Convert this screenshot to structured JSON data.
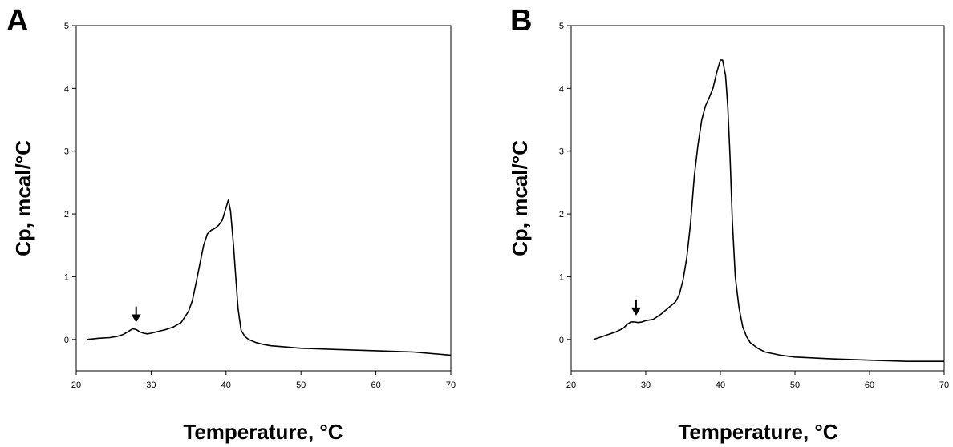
{
  "chart_data": [
    {
      "type": "line",
      "panel_label": "A",
      "xlabel": "Temperature, °C",
      "ylabel": "Cp, mcal/°C",
      "xlim": [
        20,
        70
      ],
      "ylim": [
        -0.5,
        5
      ],
      "xticks": [
        20,
        30,
        40,
        50,
        60,
        70
      ],
      "yticks": [
        0,
        1,
        2,
        3,
        4,
        5
      ],
      "grid": false,
      "annotation": {
        "type": "arrow-down",
        "x": 28.0,
        "y": 0.17
      },
      "series": [
        {
          "x": [
            21.5,
            23,
            24.5,
            25.5,
            26.3,
            27,
            27.5,
            28,
            28.5,
            29,
            29.5,
            30,
            31,
            32,
            33,
            34,
            35,
            35.5,
            36,
            36.5,
            37,
            37.5,
            38,
            38.5,
            39,
            39.5,
            40,
            40.3,
            40.6,
            41,
            41.3,
            41.6,
            42,
            42.5,
            43,
            44,
            45,
            46,
            48,
            50,
            55,
            60,
            65,
            70
          ],
          "y": [
            0.0,
            0.02,
            0.03,
            0.05,
            0.08,
            0.13,
            0.17,
            0.16,
            0.12,
            0.1,
            0.09,
            0.1,
            0.13,
            0.16,
            0.2,
            0.27,
            0.45,
            0.62,
            0.9,
            1.2,
            1.5,
            1.68,
            1.74,
            1.77,
            1.82,
            1.9,
            2.1,
            2.22,
            2.05,
            1.5,
            1.0,
            0.5,
            0.15,
            0.05,
            0.0,
            -0.05,
            -0.08,
            -0.1,
            -0.12,
            -0.14,
            -0.16,
            -0.18,
            -0.2,
            -0.25
          ]
        }
      ]
    },
    {
      "type": "line",
      "panel_label": "B",
      "xlabel": "Temperature, °C",
      "ylabel": "Cp, mcal/°C",
      "xlim": [
        20,
        70
      ],
      "ylim": [
        -0.5,
        5
      ],
      "xticks": [
        20,
        30,
        40,
        50,
        60,
        70
      ],
      "yticks": [
        0,
        1,
        2,
        3,
        4,
        5
      ],
      "grid": false,
      "annotation": {
        "type": "arrow-down",
        "x": 28.7,
        "y": 0.28
      },
      "series": [
        {
          "x": [
            23,
            24,
            25,
            26,
            27,
            27.5,
            28,
            28.5,
            29,
            29.5,
            30,
            31,
            32,
            33,
            34,
            34.5,
            35,
            35.5,
            36,
            36.5,
            37,
            37.5,
            38,
            38.5,
            39,
            39.5,
            40,
            40.3,
            40.7,
            41,
            41.3,
            41.6,
            42,
            42.5,
            43,
            43.5,
            44,
            45,
            46,
            48,
            50,
            55,
            60,
            65,
            70
          ],
          "y": [
            0.0,
            0.04,
            0.08,
            0.12,
            0.18,
            0.24,
            0.28,
            0.28,
            0.27,
            0.28,
            0.3,
            0.32,
            0.4,
            0.5,
            0.6,
            0.72,
            0.95,
            1.3,
            1.85,
            2.6,
            3.1,
            3.5,
            3.72,
            3.85,
            4.0,
            4.25,
            4.45,
            4.45,
            4.2,
            3.7,
            2.9,
            1.9,
            1.0,
            0.5,
            0.2,
            0.05,
            -0.05,
            -0.14,
            -0.2,
            -0.25,
            -0.28,
            -0.31,
            -0.33,
            -0.35,
            -0.35
          ]
        }
      ]
    }
  ]
}
